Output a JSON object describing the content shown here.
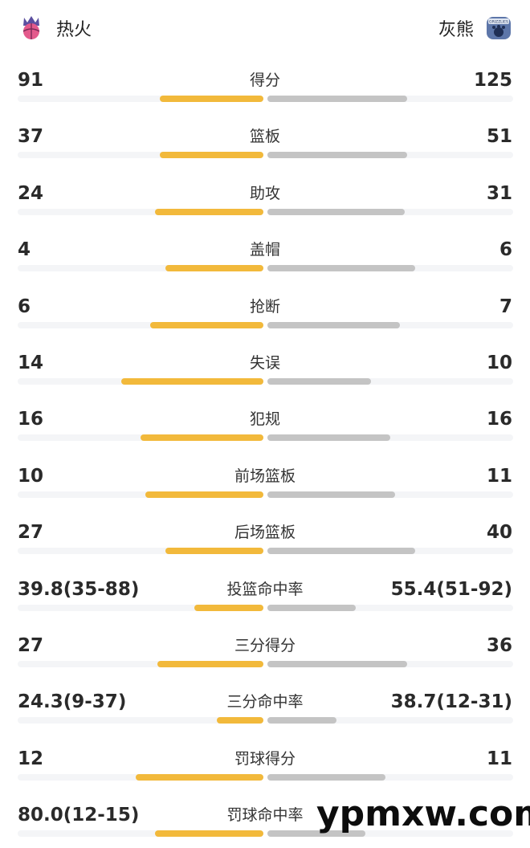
{
  "teams": {
    "home": {
      "name": "热火"
    },
    "away": {
      "name": "灰熊",
      "logo_text": "GRIZZLIES"
    }
  },
  "stats": [
    {
      "label": "得分",
      "left": "91",
      "right": "125",
      "left_fraction": 0.42,
      "right_fraction": 0.57
    },
    {
      "label": "篮板",
      "left": "37",
      "right": "51",
      "left_fraction": 0.42,
      "right_fraction": 0.57
    },
    {
      "label": "助攻",
      "left": "24",
      "right": "31",
      "left_fraction": 0.44,
      "right_fraction": 0.56
    },
    {
      "label": "盖帽",
      "left": "4",
      "right": "6",
      "left_fraction": 0.4,
      "right_fraction": 0.6
    },
    {
      "label": "抢断",
      "left": "6",
      "right": "7",
      "left_fraction": 0.46,
      "right_fraction": 0.54
    },
    {
      "label": "失误",
      "left": "14",
      "right": "10",
      "left_fraction": 0.58,
      "right_fraction": 0.42
    },
    {
      "label": "犯规",
      "left": "16",
      "right": "16",
      "left_fraction": 0.5,
      "right_fraction": 0.5
    },
    {
      "label": "前场篮板",
      "left": "10",
      "right": "11",
      "left_fraction": 0.48,
      "right_fraction": 0.52
    },
    {
      "label": "后场篮板",
      "left": "27",
      "right": "40",
      "left_fraction": 0.4,
      "right_fraction": 0.6
    },
    {
      "label": "投篮命中率",
      "left": "39.8(35-88)",
      "right": "55.4(51-92)",
      "left_fraction": 0.28,
      "right_fraction": 0.36
    },
    {
      "label": "三分得分",
      "left": "27",
      "right": "36",
      "left_fraction": 0.43,
      "right_fraction": 0.57
    },
    {
      "label": "三分命中率",
      "left": "24.3(9-37)",
      "right": "38.7(12-31)",
      "left_fraction": 0.19,
      "right_fraction": 0.28
    },
    {
      "label": "罚球得分",
      "left": "12",
      "right": "11",
      "left_fraction": 0.52,
      "right_fraction": 0.48
    },
    {
      "label": "罚球命中率",
      "left": "80.0(12-15)",
      "right": "",
      "left_fraction": 0.44,
      "right_fraction": 0.4
    }
  ],
  "colors": {
    "home_bar": "#f2b93b",
    "away_bar": "#c4c4c4",
    "track": "#f4f5f7"
  },
  "watermark": "ypmxw.com"
}
